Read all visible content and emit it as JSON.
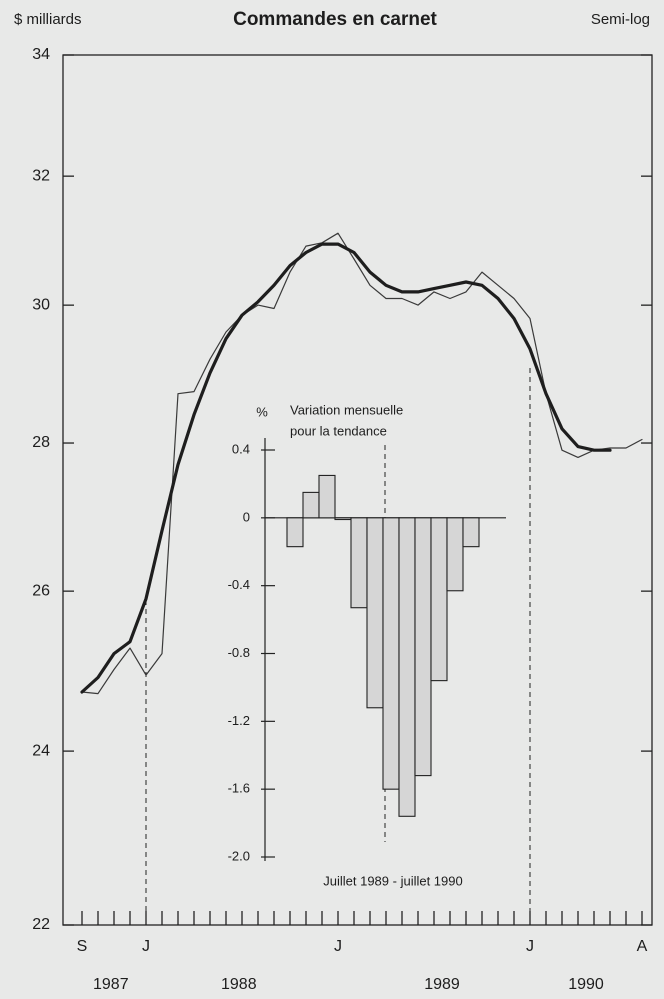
{
  "chart_data": [
    {
      "type": "line",
      "title": "Commandes en carnet",
      "y_label": "$ milliards",
      "scale_note": "Semi-log",
      "log_scale": true,
      "categories": [
        "S",
        null,
        null,
        null,
        "J",
        null,
        null,
        null,
        null,
        null,
        null,
        null,
        null,
        null,
        null,
        null,
        "J",
        null,
        null,
        null,
        null,
        null,
        null,
        null,
        null,
        null,
        null,
        null,
        "J",
        null,
        null,
        null,
        null,
        null,
        null,
        "A"
      ],
      "year_labels": [
        "1987",
        "1988",
        "1989",
        "1990"
      ],
      "series": [
        {
          "color": "#3a3a3a",
          "width": 1.2,
          "values": [
            24.72,
            24.7,
            25.0,
            25.27,
            24.93,
            25.2,
            28.7,
            28.73,
            29.2,
            29.6,
            29.85,
            30.0,
            29.95,
            30.5,
            30.9,
            30.95,
            31.1,
            30.7,
            30.3,
            30.1,
            30.1,
            30.0,
            30.2,
            30.1,
            30.2,
            30.5,
            30.3,
            30.1,
            29.8,
            28.7,
            27.9,
            27.8,
            27.9,
            27.93,
            27.93,
            28.05
          ]
        },
        {
          "color": "#1e1e1e",
          "width": 3.2,
          "values": [
            24.72,
            24.9,
            25.2,
            25.35,
            25.9,
            26.8,
            27.7,
            28.4,
            29.0,
            29.5,
            29.85,
            30.05,
            30.3,
            30.6,
            30.8,
            30.93,
            30.93,
            30.8,
            30.5,
            30.3,
            30.2,
            30.2,
            30.25,
            30.3,
            30.35,
            30.3,
            30.1,
            29.8,
            29.35,
            28.7,
            28.2,
            27.95,
            27.9,
            27.9,
            null,
            null
          ]
        }
      ],
      "ylim": [
        22,
        34
      ],
      "yticks": [
        22,
        24,
        26,
        28,
        30,
        32,
        34
      ]
    },
    {
      "type": "bar",
      "title_lines": [
        "Variation mensuelle",
        "pour la tendance"
      ],
      "y_label": "%",
      "annotation": "Juillet 1989 - juillet 1990",
      "values": [
        -0.17,
        0.15,
        0.25,
        -0.01,
        -0.53,
        -1.12,
        -1.6,
        -1.76,
        -1.52,
        -0.96,
        -0.43,
        -0.17
      ],
      "color": "#d6d6d6",
      "ylim": [
        -2.0,
        0.4
      ],
      "yticks": [
        0.4,
        0,
        -0.4,
        -0.8,
        -1.2,
        -1.6,
        {
          "value": -2.0,
          "label": "-2.0"
        }
      ]
    }
  ]
}
